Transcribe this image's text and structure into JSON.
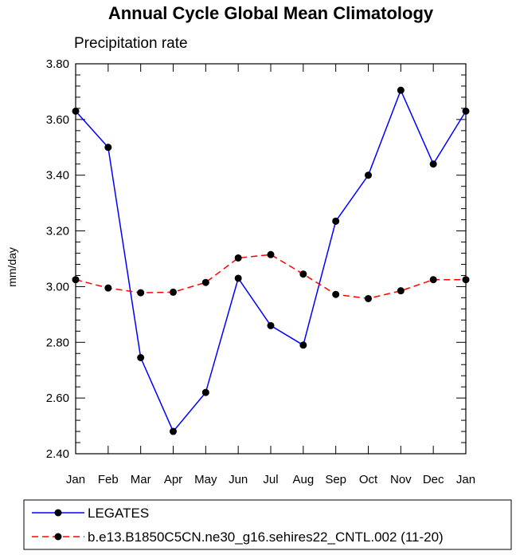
{
  "chart_data": {
    "type": "line",
    "title": "Annual Cycle Global Mean Climatology",
    "subtitle": "Precipitation rate",
    "xlabel": "",
    "ylabel": "mm/day",
    "ylim": [
      2.4,
      3.8
    ],
    "yticks": [
      "2.40",
      "2.60",
      "2.80",
      "3.00",
      "3.20",
      "3.40",
      "3.60",
      "3.80"
    ],
    "categories": [
      "Jan",
      "Feb",
      "Mar",
      "Apr",
      "May",
      "Jun",
      "Jul",
      "Aug",
      "Sep",
      "Oct",
      "Nov",
      "Dec",
      "Jan"
    ],
    "grid": false,
    "legend_position": "bottom",
    "series": [
      {
        "name": "LEGATES",
        "color": "#0000ff",
        "style": "solid",
        "values": [
          3.63,
          3.5,
          2.745,
          2.48,
          2.62,
          3.03,
          2.86,
          2.79,
          3.235,
          3.4,
          3.705,
          3.44,
          3.63
        ]
      },
      {
        "name": "b.e13.B1850C5CN.ne30_g16.sehires22_CNTL.002 (11-20)",
        "color": "#ff0000",
        "style": "dashed",
        "values": [
          3.025,
          2.995,
          2.978,
          2.98,
          3.015,
          3.103,
          3.115,
          3.045,
          2.972,
          2.957,
          2.985,
          3.025,
          3.025
        ]
      }
    ]
  }
}
